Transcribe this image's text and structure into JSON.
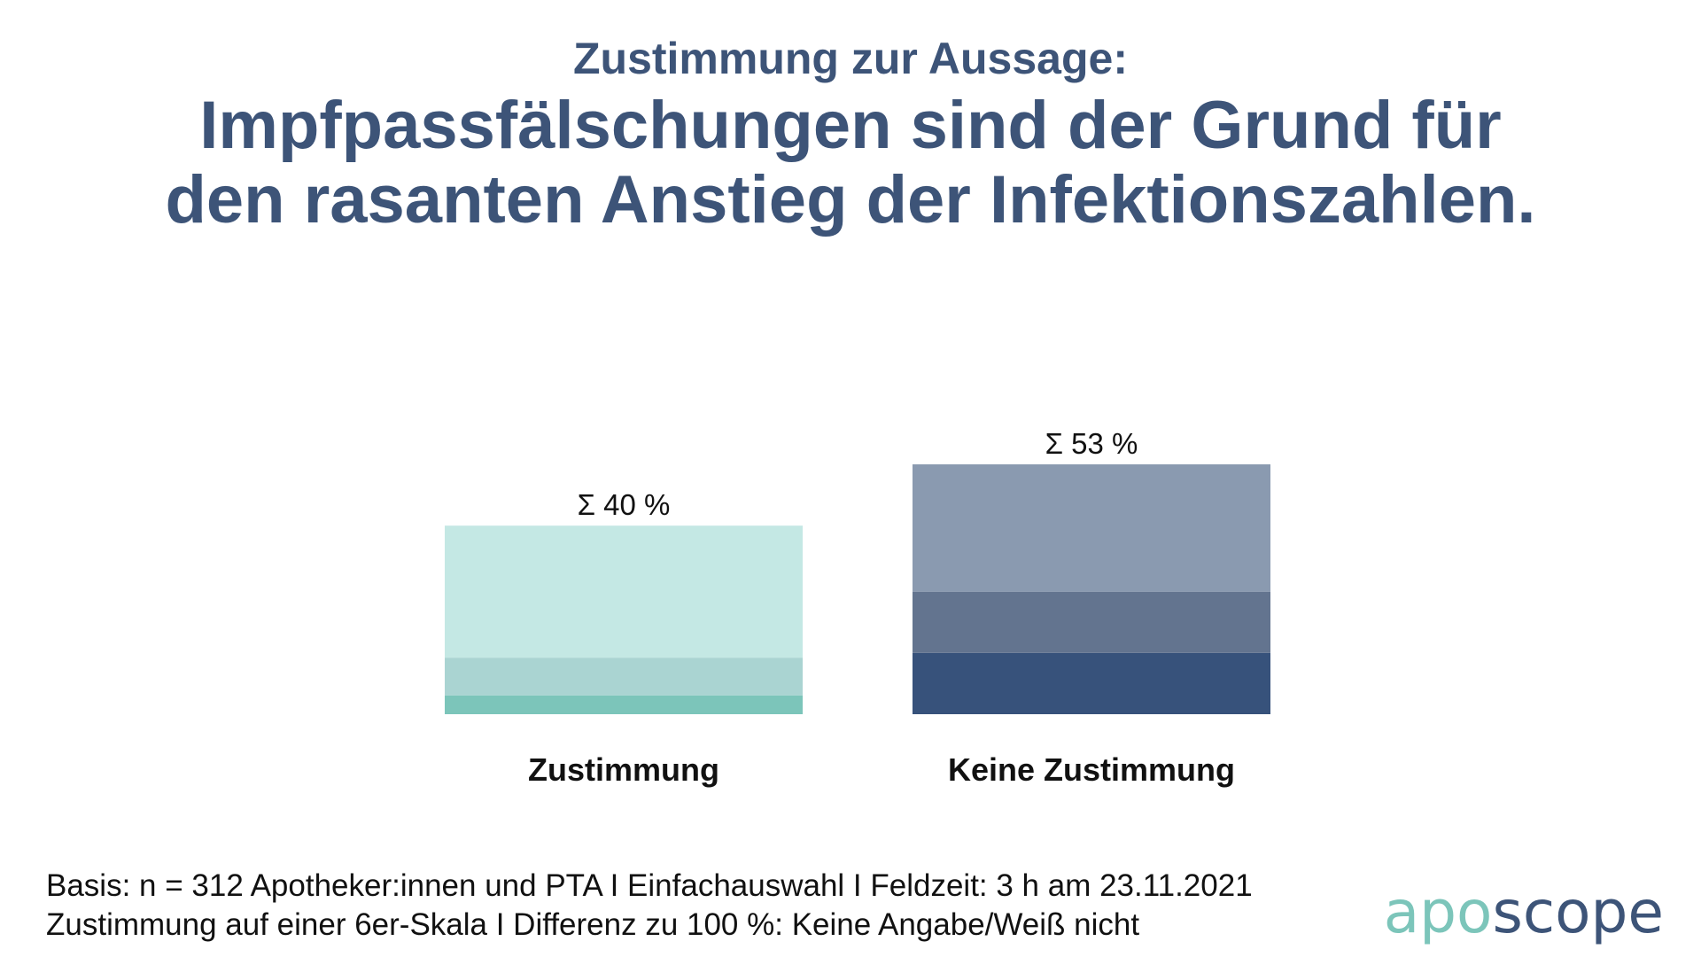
{
  "header": {
    "subtitle": "Zustimmung zur Aussage:",
    "title_line1": "Impfpassfälschungen sind der Grund für",
    "title_line2": "den rasanten Anstieg der Infektionszahlen."
  },
  "chart_data": {
    "type": "bar",
    "stacked": true,
    "categories": [
      "Zustimmung",
      "Keine Zustimmung"
    ],
    "totals": [
      40,
      53
    ],
    "total_labels": [
      "Σ 40  %",
      "Σ 53  %"
    ],
    "segments": [
      [
        {
          "value": 4,
          "color": "#7cc5ba"
        },
        {
          "value": 8,
          "color": "#aad4d2"
        },
        {
          "value": 28,
          "color": "#c4e8e4"
        }
      ],
      [
        {
          "value": 13,
          "color": "#37527b"
        },
        {
          "value": 13,
          "color": "#63748f"
        },
        {
          "value": 27,
          "color": "#8a9ab0"
        }
      ]
    ],
    "ylim": [
      0,
      100
    ],
    "grid": false,
    "legend": "none"
  },
  "footer": {
    "line1": "Basis: n = 312 Apotheker:innen und PTA I Einfachauswahl I Feldzeit: 3 h am 23.11.2021",
    "line2": "Zustimmung auf einer 6er-Skala I Differenz zu 100 %: Keine Angabe/Weiß nicht"
  },
  "logo": {
    "part1": "apo",
    "part2": "scope"
  }
}
